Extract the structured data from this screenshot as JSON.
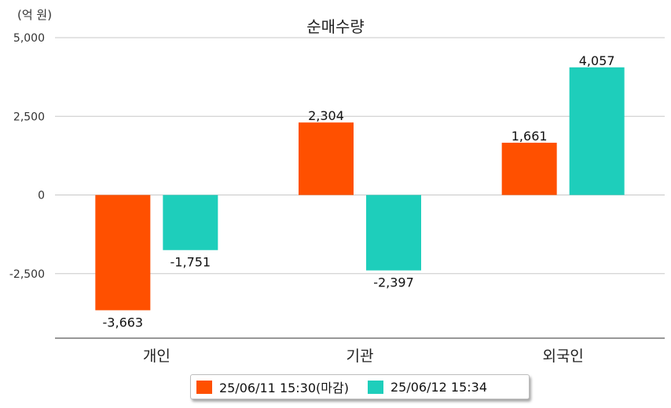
{
  "unit": "(억 원)",
  "chart_data": {
    "type": "bar",
    "title": "순매수량",
    "categories": [
      "개인",
      "기관",
      "외국인"
    ],
    "series": [
      {
        "name": "25/06/11 15:30(마감)",
        "values": [
          -3663,
          2304,
          1661
        ],
        "labels": [
          "-3,663",
          "2,304",
          "1,661"
        ],
        "color": "#FF5000"
      },
      {
        "name": "25/06/12 15:34",
        "values": [
          -1751,
          -2397,
          4057
        ],
        "labels": [
          "-1,751",
          "-2,397",
          "4,057"
        ],
        "color": "#1ECEBB"
      }
    ],
    "y_ticks": [
      5000,
      2500,
      0,
      -2500
    ],
    "y_tick_labels": [
      "5,000",
      "2,500",
      "0",
      "-2,500"
    ],
    "ylim": [
      -4550,
      5000
    ],
    "grid": true,
    "legend_position": "bottom"
  },
  "colors": {
    "gridline": "#c8c8c8",
    "axis": "#777777",
    "text": "#222222"
  }
}
